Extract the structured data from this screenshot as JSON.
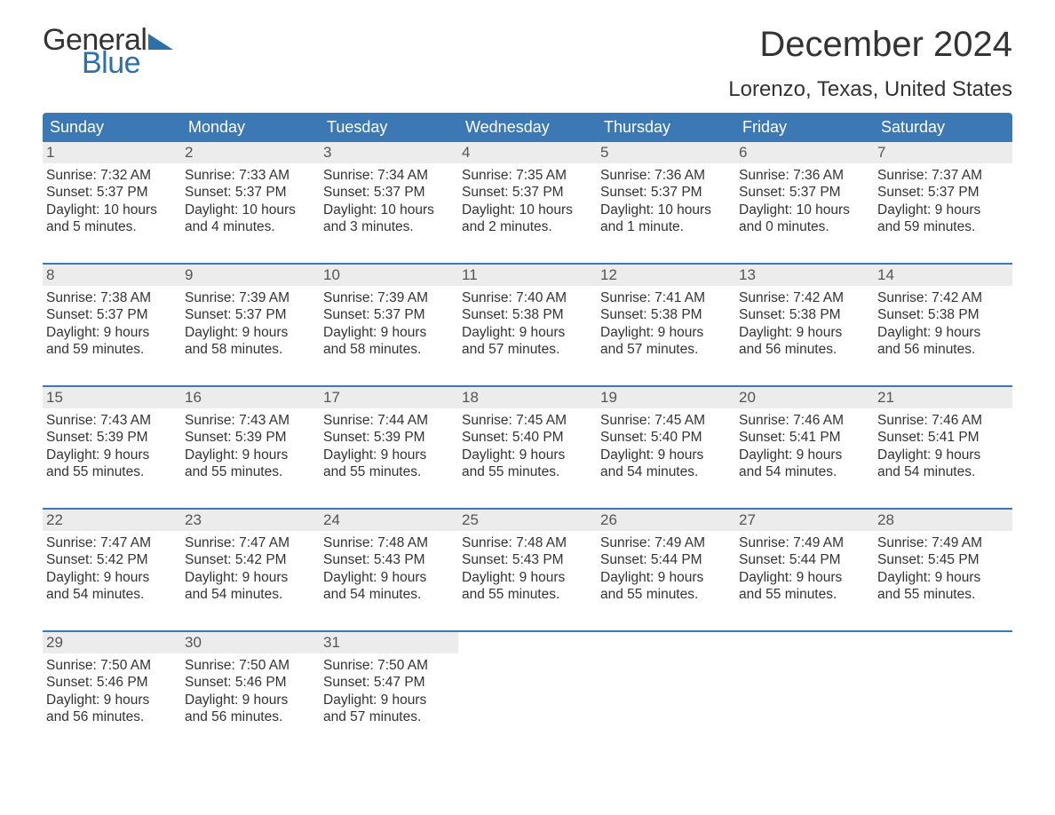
{
  "logo": {
    "word1": "General",
    "word2": "Blue"
  },
  "title": "December 2024",
  "location": "Lorenzo, Texas, United States",
  "colors": {
    "header_bg": "#3c78b4",
    "header_text": "#ffffff",
    "week_border": "#3c78b4",
    "daynum_bg": "#ececec",
    "body_text": "#333333",
    "logo_accent": "#2f6fa8",
    "page_bg": "#ffffff"
  },
  "fonts": {
    "title_size_pt": 30,
    "location_size_pt": 18,
    "dayheader_size_pt": 14,
    "cell_size_pt": 12,
    "family": "Arial"
  },
  "day_headers": [
    "Sunday",
    "Monday",
    "Tuesday",
    "Wednesday",
    "Thursday",
    "Friday",
    "Saturday"
  ],
  "weeks": [
    [
      {
        "n": "1",
        "sunrise": "Sunrise: 7:32 AM",
        "sunset": "Sunset: 5:37 PM",
        "d1": "Daylight: 10 hours",
        "d2": "and 5 minutes."
      },
      {
        "n": "2",
        "sunrise": "Sunrise: 7:33 AM",
        "sunset": "Sunset: 5:37 PM",
        "d1": "Daylight: 10 hours",
        "d2": "and 4 minutes."
      },
      {
        "n": "3",
        "sunrise": "Sunrise: 7:34 AM",
        "sunset": "Sunset: 5:37 PM",
        "d1": "Daylight: 10 hours",
        "d2": "and 3 minutes."
      },
      {
        "n": "4",
        "sunrise": "Sunrise: 7:35 AM",
        "sunset": "Sunset: 5:37 PM",
        "d1": "Daylight: 10 hours",
        "d2": "and 2 minutes."
      },
      {
        "n": "5",
        "sunrise": "Sunrise: 7:36 AM",
        "sunset": "Sunset: 5:37 PM",
        "d1": "Daylight: 10 hours",
        "d2": "and 1 minute."
      },
      {
        "n": "6",
        "sunrise": "Sunrise: 7:36 AM",
        "sunset": "Sunset: 5:37 PM",
        "d1": "Daylight: 10 hours",
        "d2": "and 0 minutes."
      },
      {
        "n": "7",
        "sunrise": "Sunrise: 7:37 AM",
        "sunset": "Sunset: 5:37 PM",
        "d1": "Daylight: 9 hours",
        "d2": "and 59 minutes."
      }
    ],
    [
      {
        "n": "8",
        "sunrise": "Sunrise: 7:38 AM",
        "sunset": "Sunset: 5:37 PM",
        "d1": "Daylight: 9 hours",
        "d2": "and 59 minutes."
      },
      {
        "n": "9",
        "sunrise": "Sunrise: 7:39 AM",
        "sunset": "Sunset: 5:37 PM",
        "d1": "Daylight: 9 hours",
        "d2": "and 58 minutes."
      },
      {
        "n": "10",
        "sunrise": "Sunrise: 7:39 AM",
        "sunset": "Sunset: 5:37 PM",
        "d1": "Daylight: 9 hours",
        "d2": "and 58 minutes."
      },
      {
        "n": "11",
        "sunrise": "Sunrise: 7:40 AM",
        "sunset": "Sunset: 5:38 PM",
        "d1": "Daylight: 9 hours",
        "d2": "and 57 minutes."
      },
      {
        "n": "12",
        "sunrise": "Sunrise: 7:41 AM",
        "sunset": "Sunset: 5:38 PM",
        "d1": "Daylight: 9 hours",
        "d2": "and 57 minutes."
      },
      {
        "n": "13",
        "sunrise": "Sunrise: 7:42 AM",
        "sunset": "Sunset: 5:38 PM",
        "d1": "Daylight: 9 hours",
        "d2": "and 56 minutes."
      },
      {
        "n": "14",
        "sunrise": "Sunrise: 7:42 AM",
        "sunset": "Sunset: 5:38 PM",
        "d1": "Daylight: 9 hours",
        "d2": "and 56 minutes."
      }
    ],
    [
      {
        "n": "15",
        "sunrise": "Sunrise: 7:43 AM",
        "sunset": "Sunset: 5:39 PM",
        "d1": "Daylight: 9 hours",
        "d2": "and 55 minutes."
      },
      {
        "n": "16",
        "sunrise": "Sunrise: 7:43 AM",
        "sunset": "Sunset: 5:39 PM",
        "d1": "Daylight: 9 hours",
        "d2": "and 55 minutes."
      },
      {
        "n": "17",
        "sunrise": "Sunrise: 7:44 AM",
        "sunset": "Sunset: 5:39 PM",
        "d1": "Daylight: 9 hours",
        "d2": "and 55 minutes."
      },
      {
        "n": "18",
        "sunrise": "Sunrise: 7:45 AM",
        "sunset": "Sunset: 5:40 PM",
        "d1": "Daylight: 9 hours",
        "d2": "and 55 minutes."
      },
      {
        "n": "19",
        "sunrise": "Sunrise: 7:45 AM",
        "sunset": "Sunset: 5:40 PM",
        "d1": "Daylight: 9 hours",
        "d2": "and 54 minutes."
      },
      {
        "n": "20",
        "sunrise": "Sunrise: 7:46 AM",
        "sunset": "Sunset: 5:41 PM",
        "d1": "Daylight: 9 hours",
        "d2": "and 54 minutes."
      },
      {
        "n": "21",
        "sunrise": "Sunrise: 7:46 AM",
        "sunset": "Sunset: 5:41 PM",
        "d1": "Daylight: 9 hours",
        "d2": "and 54 minutes."
      }
    ],
    [
      {
        "n": "22",
        "sunrise": "Sunrise: 7:47 AM",
        "sunset": "Sunset: 5:42 PM",
        "d1": "Daylight: 9 hours",
        "d2": "and 54 minutes."
      },
      {
        "n": "23",
        "sunrise": "Sunrise: 7:47 AM",
        "sunset": "Sunset: 5:42 PM",
        "d1": "Daylight: 9 hours",
        "d2": "and 54 minutes."
      },
      {
        "n": "24",
        "sunrise": "Sunrise: 7:48 AM",
        "sunset": "Sunset: 5:43 PM",
        "d1": "Daylight: 9 hours",
        "d2": "and 54 minutes."
      },
      {
        "n": "25",
        "sunrise": "Sunrise: 7:48 AM",
        "sunset": "Sunset: 5:43 PM",
        "d1": "Daylight: 9 hours",
        "d2": "and 55 minutes."
      },
      {
        "n": "26",
        "sunrise": "Sunrise: 7:49 AM",
        "sunset": "Sunset: 5:44 PM",
        "d1": "Daylight: 9 hours",
        "d2": "and 55 minutes."
      },
      {
        "n": "27",
        "sunrise": "Sunrise: 7:49 AM",
        "sunset": "Sunset: 5:44 PM",
        "d1": "Daylight: 9 hours",
        "d2": "and 55 minutes."
      },
      {
        "n": "28",
        "sunrise": "Sunrise: 7:49 AM",
        "sunset": "Sunset: 5:45 PM",
        "d1": "Daylight: 9 hours",
        "d2": "and 55 minutes."
      }
    ],
    [
      {
        "n": "29",
        "sunrise": "Sunrise: 7:50 AM",
        "sunset": "Sunset: 5:46 PM",
        "d1": "Daylight: 9 hours",
        "d2": "and 56 minutes."
      },
      {
        "n": "30",
        "sunrise": "Sunrise: 7:50 AM",
        "sunset": "Sunset: 5:46 PM",
        "d1": "Daylight: 9 hours",
        "d2": "and 56 minutes."
      },
      {
        "n": "31",
        "sunrise": "Sunrise: 7:50 AM",
        "sunset": "Sunset: 5:47 PM",
        "d1": "Daylight: 9 hours",
        "d2": "and 57 minutes."
      },
      {
        "blank": true
      },
      {
        "blank": true
      },
      {
        "blank": true
      },
      {
        "blank": true
      }
    ]
  ]
}
